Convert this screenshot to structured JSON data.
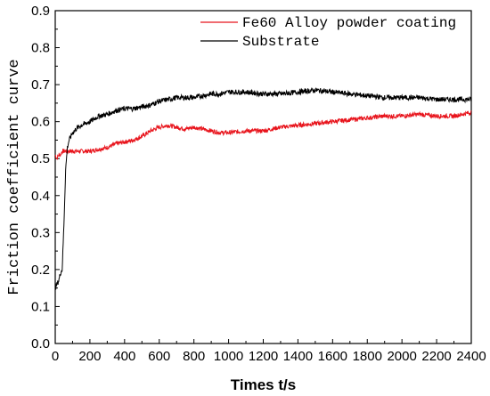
{
  "chart_data": {
    "type": "line",
    "xlabel": "Times t/s",
    "ylabel": "Friction coefficient curve",
    "xlim": [
      0,
      2400
    ],
    "ylim": [
      0.0,
      0.9
    ],
    "xticks": [
      0,
      200,
      400,
      600,
      800,
      1000,
      1200,
      1400,
      1600,
      1800,
      2000,
      2200,
      2400
    ],
    "yticks": [
      0.0,
      0.1,
      0.2,
      0.3,
      0.4,
      0.5,
      0.6,
      0.7,
      0.8,
      0.9
    ],
    "xtick_labels": [
      "0",
      "200",
      "400",
      "600",
      "800",
      "1000",
      "1200",
      "1400",
      "1600",
      "1800",
      "2000",
      "2200",
      "2400"
    ],
    "ytick_labels": [
      "0.0",
      "0.1",
      "0.2",
      "0.3",
      "0.4",
      "0.5",
      "0.6",
      "0.7",
      "0.8",
      "0.9"
    ],
    "grid": false,
    "legend_position": "top-right",
    "series": [
      {
        "name": "Fe60 Alloy powder coating",
        "color": "#e8141c",
        "x": [
          0,
          10,
          20,
          30,
          40,
          60,
          80,
          100,
          150,
          200,
          250,
          300,
          350,
          400,
          450,
          500,
          550,
          600,
          650,
          700,
          750,
          800,
          850,
          900,
          950,
          1000,
          1100,
          1200,
          1300,
          1400,
          1500,
          1600,
          1700,
          1800,
          1900,
          2000,
          2100,
          2200,
          2300,
          2400
        ],
        "y": [
          0.51,
          0.5,
          0.51,
          0.51,
          0.52,
          0.52,
          0.52,
          0.52,
          0.52,
          0.52,
          0.525,
          0.53,
          0.54,
          0.545,
          0.55,
          0.56,
          0.575,
          0.585,
          0.59,
          0.585,
          0.58,
          0.585,
          0.58,
          0.575,
          0.57,
          0.57,
          0.575,
          0.575,
          0.585,
          0.59,
          0.595,
          0.6,
          0.605,
          0.61,
          0.615,
          0.615,
          0.62,
          0.615,
          0.615,
          0.625
        ]
      },
      {
        "name": "Substrate",
        "color": "#000000",
        "x": [
          0,
          10,
          20,
          30,
          40,
          50,
          60,
          70,
          80,
          100,
          120,
          150,
          200,
          250,
          300,
          350,
          400,
          450,
          500,
          550,
          600,
          650,
          700,
          750,
          800,
          850,
          900,
          950,
          1000,
          1100,
          1200,
          1300,
          1400,
          1500,
          1600,
          1700,
          1800,
          1900,
          2000,
          2100,
          2200,
          2300,
          2400
        ],
        "y": [
          0.15,
          0.16,
          0.17,
          0.19,
          0.2,
          0.32,
          0.47,
          0.53,
          0.55,
          0.57,
          0.58,
          0.59,
          0.6,
          0.615,
          0.62,
          0.63,
          0.635,
          0.635,
          0.64,
          0.645,
          0.655,
          0.66,
          0.665,
          0.665,
          0.665,
          0.67,
          0.675,
          0.675,
          0.68,
          0.68,
          0.675,
          0.675,
          0.68,
          0.685,
          0.68,
          0.675,
          0.67,
          0.665,
          0.665,
          0.665,
          0.66,
          0.66,
          0.66
        ]
      }
    ]
  }
}
